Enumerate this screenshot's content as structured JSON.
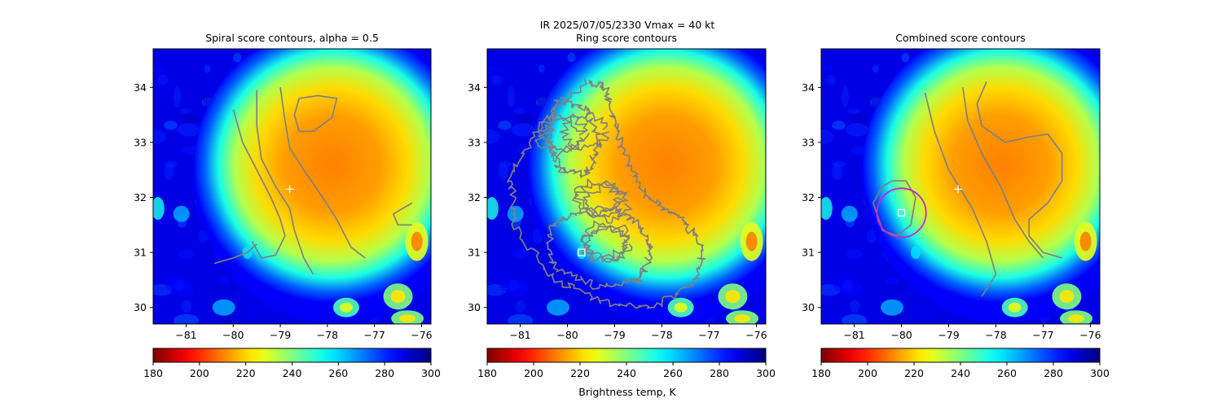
{
  "suptitle_line1": "IR  2025/07/05/2330    Vmax = 40 kt",
  "colorbar_label": "Brightness temp, K",
  "chart_data": [
    {
      "type": "heatmap",
      "title": "Spiral score contours, alpha =  0.5",
      "xlim": [
        -81.7,
        -75.8
      ],
      "ylim": [
        29.7,
        34.7
      ],
      "xticks": [
        -81,
        -80,
        -79,
        -78,
        -77,
        -76
      ],
      "yticks": [
        30,
        31,
        32,
        33,
        34
      ],
      "storm_center": [
        -77.9,
        32.6
      ],
      "markers": [
        {
          "kind": "plus",
          "color": "#ffffff",
          "lon": -78.8,
          "lat": 32.15
        }
      ],
      "contours": [
        {
          "color": "#808080",
          "points": [
            [
              -79.0,
              34.0
            ],
            [
              -78.9,
              33.4
            ],
            [
              -78.8,
              32.9
            ],
            [
              -78.5,
              32.5
            ],
            [
              -78.1,
              32.0
            ],
            [
              -77.8,
              31.6
            ],
            [
              -77.5,
              31.1
            ],
            [
              -77.2,
              30.9
            ]
          ]
        },
        {
          "color": "#808080",
          "points": [
            [
              -79.5,
              33.95
            ],
            [
              -79.5,
              33.3
            ],
            [
              -79.4,
              32.7
            ],
            [
              -79.1,
              32.2
            ],
            [
              -78.8,
              31.8
            ],
            [
              -78.7,
              31.4
            ],
            [
              -78.5,
              30.9
            ],
            [
              -78.3,
              30.6
            ]
          ]
        },
        {
          "color": "#808080",
          "points": [
            [
              -80.0,
              33.6
            ],
            [
              -79.8,
              33.0
            ],
            [
              -79.5,
              32.5
            ],
            [
              -79.2,
              32.0
            ],
            [
              -79.0,
              31.6
            ],
            [
              -78.9,
              31.3
            ],
            [
              -79.1,
              30.95
            ],
            [
              -79.4,
              30.9
            ],
            [
              -79.6,
              31.2
            ]
          ]
        },
        {
          "color": "#808080",
          "points": [
            [
              -80.4,
              30.8
            ],
            [
              -80.0,
              30.9
            ],
            [
              -79.7,
              31.0
            ],
            [
              -79.5,
              31.15
            ]
          ]
        },
        {
          "color": "#808080",
          "points": [
            [
              -78.6,
              33.8
            ],
            [
              -78.2,
              33.85
            ],
            [
              -77.8,
              33.8
            ],
            [
              -77.9,
              33.45
            ],
            [
              -78.3,
              33.2
            ],
            [
              -78.6,
              33.2
            ],
            [
              -78.7,
              33.5
            ],
            [
              -78.6,
              33.8
            ]
          ]
        },
        {
          "color": "#808080",
          "points": [
            [
              -76.2,
              31.9
            ],
            [
              -76.6,
              31.7
            ],
            [
              -76.5,
              31.5
            ],
            [
              -76.2,
              31.5
            ]
          ]
        }
      ],
      "colorbar": {
        "vmin": 180,
        "vmax": 300,
        "ticks": [
          180,
          200,
          220,
          240,
          260,
          280,
          300
        ],
        "cmap": "jet_r"
      }
    },
    {
      "type": "heatmap",
      "title": "Ring score contours",
      "xlim": [
        -81.7,
        -75.8
      ],
      "ylim": [
        29.7,
        34.7
      ],
      "xticks": [
        -81,
        -80,
        -79,
        -78,
        -77,
        -76
      ],
      "yticks": [
        30,
        31,
        32,
        33,
        34
      ],
      "storm_center": [
        -77.9,
        32.6
      ],
      "markers": [
        {
          "kind": "square",
          "color": "#ffffff",
          "lon": -79.7,
          "lat": 31.0
        }
      ],
      "contours": [
        {
          "color": "#808080",
          "noisy": true,
          "points": [
            [
              -79.6,
              34.1
            ],
            [
              -80.6,
              33.3
            ],
            [
              -81.2,
              32.4
            ],
            [
              -81.1,
              31.5
            ],
            [
              -80.4,
              30.6
            ],
            [
              -79.3,
              30.1
            ],
            [
              -78.1,
              30.0
            ],
            [
              -77.3,
              30.5
            ],
            [
              -77.1,
              31.1
            ],
            [
              -77.6,
              31.6
            ],
            [
              -78.3,
              32.0
            ],
            [
              -78.7,
              32.6
            ],
            [
              -79.0,
              33.3
            ],
            [
              -79.2,
              34.0
            ],
            [
              -79.6,
              34.1
            ]
          ]
        },
        {
          "color": "#808080",
          "noisy": true,
          "points": [
            [
              -79.7,
              31.8
            ],
            [
              -80.4,
              31.4
            ],
            [
              -80.3,
              30.7
            ],
            [
              -79.4,
              30.4
            ],
            [
              -78.5,
              30.5
            ],
            [
              -78.2,
              31.0
            ],
            [
              -78.5,
              31.5
            ],
            [
              -79.0,
              31.8
            ],
            [
              -79.7,
              31.8
            ]
          ]
        },
        {
          "color": "#808080",
          "noisy": true,
          "points": [
            [
              -80.2,
              33.8
            ],
            [
              -80.4,
              33.1
            ],
            [
              -80.2,
              32.5
            ],
            [
              -79.6,
              32.4
            ],
            [
              -79.3,
              33.0
            ],
            [
              -79.6,
              33.6
            ],
            [
              -80.2,
              33.8
            ]
          ]
        }
      ],
      "colorbar": {
        "vmin": 180,
        "vmax": 300,
        "ticks": [
          180,
          200,
          220,
          240,
          260,
          280,
          300
        ],
        "cmap": "jet_r"
      }
    },
    {
      "type": "heatmap",
      "title": "Combined score contours",
      "xlim": [
        -81.7,
        -75.8
      ],
      "ylim": [
        29.7,
        34.7
      ],
      "xticks": [
        -81,
        -80,
        -79,
        -78,
        -77,
        -76
      ],
      "yticks": [
        30,
        31,
        32,
        33,
        34
      ],
      "storm_center": [
        -77.9,
        32.6
      ],
      "markers": [
        {
          "kind": "plus",
          "color": "#ffffff",
          "lon": -78.8,
          "lat": 32.15
        },
        {
          "kind": "square",
          "color": "#ffffff",
          "lon": -80.0,
          "lat": 31.72
        }
      ],
      "circles": [
        {
          "color": "#cc22cc",
          "lon": -80.0,
          "lat": 31.72,
          "radius_deg": 0.52
        }
      ],
      "contours": [
        {
          "color": "#808080",
          "points": [
            [
              -78.2,
              34.1
            ],
            [
              -78.4,
              33.7
            ],
            [
              -78.3,
              33.3
            ],
            [
              -77.8,
              33.0
            ],
            [
              -77.3,
              33.1
            ],
            [
              -76.9,
              33.15
            ],
            [
              -76.6,
              32.8
            ],
            [
              -76.6,
              32.3
            ],
            [
              -76.9,
              31.9
            ],
            [
              -77.3,
              31.6
            ],
            [
              -77.3,
              31.3
            ],
            [
              -77.0,
              31.0
            ],
            [
              -76.6,
              30.9
            ]
          ]
        },
        {
          "color": "#808080",
          "points": [
            [
              -78.7,
              34.0
            ],
            [
              -78.6,
              33.4
            ],
            [
              -78.3,
              32.8
            ],
            [
              -77.9,
              32.2
            ],
            [
              -77.6,
              31.6
            ],
            [
              -77.3,
              31.2
            ],
            [
              -77.0,
              30.9
            ]
          ]
        },
        {
          "color": "#808080",
          "points": [
            [
              -79.5,
              33.9
            ],
            [
              -79.3,
              33.2
            ],
            [
              -79.0,
              32.5
            ],
            [
              -78.5,
              31.8
            ],
            [
              -78.2,
              31.2
            ],
            [
              -78.0,
              30.6
            ],
            [
              -78.3,
              30.2
            ]
          ]
        },
        {
          "color": "#808080",
          "points": [
            [
              -80.2,
              32.3
            ],
            [
              -79.9,
              32.3
            ],
            [
              -79.7,
              32.0
            ],
            [
              -79.8,
              31.5
            ],
            [
              -80.1,
              31.3
            ],
            [
              -80.4,
              31.4
            ],
            [
              -80.6,
              31.9
            ],
            [
              -80.4,
              32.2
            ],
            [
              -80.2,
              32.3
            ]
          ]
        }
      ],
      "colorbar": {
        "vmin": 180,
        "vmax": 300,
        "ticks": [
          180,
          200,
          220,
          240,
          260,
          280,
          300
        ],
        "cmap": "jet_r"
      }
    }
  ]
}
